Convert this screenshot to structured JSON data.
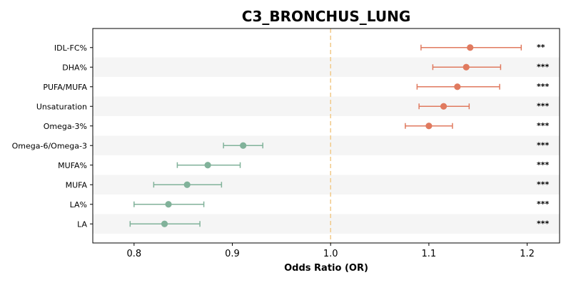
{
  "chart_data": {
    "type": "forest",
    "title": "C3_BRONCHUS_LUNG",
    "xlabel": "Odds Ratio (OR)",
    "xlim": [
      0.758,
      1.233
    ],
    "xticks": [
      "0.8",
      "0.9",
      "1.0",
      "1.1",
      "1.2"
    ],
    "reference_line": 1.0,
    "colors": {
      "positive": "#e07a5f",
      "negative": "#81b29a",
      "reference": "#f2cc8f",
      "stripe": "#f5f5f5"
    },
    "rows": [
      {
        "label": "IDL-FC%",
        "or": 1.142,
        "lo": 1.092,
        "hi": 1.194,
        "sig": "**"
      },
      {
        "label": "DHA%",
        "or": 1.138,
        "lo": 1.104,
        "hi": 1.173,
        "sig": "***"
      },
      {
        "label": "PUFA/MUFA",
        "or": 1.129,
        "lo": 1.088,
        "hi": 1.172,
        "sig": "***"
      },
      {
        "label": "Unsaturation",
        "or": 1.115,
        "lo": 1.09,
        "hi": 1.141,
        "sig": "***"
      },
      {
        "label": "Omega-3%",
        "or": 1.1,
        "lo": 1.076,
        "hi": 1.124,
        "sig": "***"
      },
      {
        "label": "Omega-6/Omega-3",
        "or": 0.911,
        "lo": 0.891,
        "hi": 0.931,
        "sig": "***"
      },
      {
        "label": "MUFA%",
        "or": 0.875,
        "lo": 0.844,
        "hi": 0.908,
        "sig": "***"
      },
      {
        "label": "MUFA",
        "or": 0.854,
        "lo": 0.82,
        "hi": 0.889,
        "sig": "***"
      },
      {
        "label": "LA%",
        "or": 0.835,
        "lo": 0.8,
        "hi": 0.871,
        "sig": "***"
      },
      {
        "label": "LA",
        "or": 0.831,
        "lo": 0.796,
        "hi": 0.867,
        "sig": "***"
      }
    ]
  }
}
